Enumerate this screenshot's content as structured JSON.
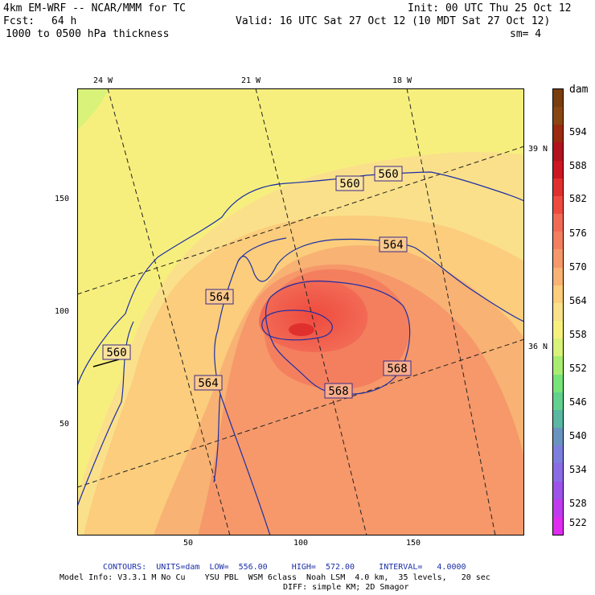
{
  "header": {
    "model": "4km EM-WRF -- NCAR/MMM for TC",
    "init": "Init: 00 UTC Thu 25 Oct 12",
    "fcst_label": "Fcst:",
    "fcst_value": "64 h",
    "valid": "Valid: 16 UTC Sat 27 Oct 12 (10 MDT Sat 27 Oct 12)",
    "field": "1000 to 0500 hPa thickness",
    "smooth": "sm= 4"
  },
  "map": {
    "lon_labels": [
      "24 W",
      "21 W",
      "18 W"
    ],
    "lat_labels": [
      "39 N",
      "36 N"
    ],
    "y_ticks": [
      "150",
      "100",
      "50"
    ],
    "x_ticks": [
      "50",
      "100",
      "150"
    ],
    "contour_labels": [
      "560",
      "560",
      "560",
      "564",
      "564",
      "564",
      "568",
      "568"
    ]
  },
  "colorbar": {
    "unit": "dam",
    "labels": [
      "594",
      "588",
      "582",
      "576",
      "570",
      "564",
      "558",
      "552",
      "546",
      "540",
      "534",
      "528",
      "522"
    ],
    "colors": [
      "#7a3d0d",
      "#8a4612",
      "#9a2a10",
      "#b0121e",
      "#cc1622",
      "#e0302e",
      "#ef4a40",
      "#f26a55",
      "#f47f5f",
      "#f6986a",
      "#f8b273",
      "#fbcd7c",
      "#fae08a",
      "#f7f07e",
      "#d9f27a",
      "#a8ec72",
      "#77e47a",
      "#62d18e",
      "#5ab7a2",
      "#6a94c0",
      "#7c7fdd",
      "#8a6ce6",
      "#9d52ea",
      "#c03bee",
      "#e02cf0"
    ]
  },
  "footer": {
    "contours": "CONTOURS:  UNITS=dam  LOW=  556.00     HIGH=  572.00     INTERVAL=   4.0000",
    "model_info": "Model Info: V3.3.1 M No Cu    YSU PBL  WSM 6class  Noah LSM  4.0 km,  35 levels,   20 sec",
    "diff": "DIFF: simple KM; 2D Smagor"
  }
}
